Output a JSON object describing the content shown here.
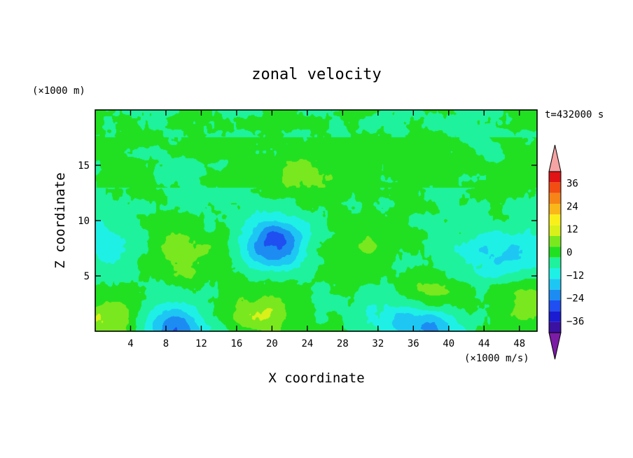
{
  "chart_data": {
    "type": "heatmap",
    "title": "zonal velocity",
    "xlabel": "X coordinate",
    "ylabel": "Z coordinate",
    "x_unit": "(×1000 m/s)",
    "y_unit": "(×1000 m)",
    "time_label": "t=432000 s",
    "xlim": [
      0,
      50
    ],
    "ylim": [
      0,
      20
    ],
    "x_ticks": [
      "4",
      "8",
      "12",
      "16",
      "20",
      "24",
      "28",
      "32",
      "36",
      "40",
      "44",
      "48"
    ],
    "y_ticks": [
      "5",
      "10",
      "15"
    ],
    "colorbar": {
      "tick_labels": [
        "36",
        "24",
        "12",
        "0",
        "−12",
        "−24",
        "−36"
      ],
      "levels": [
        -42,
        -36,
        -30,
        -24,
        -18,
        -12,
        -6,
        0,
        6,
        12,
        18,
        24,
        30,
        36,
        42
      ],
      "colors": [
        "#7c1ba6",
        "#3a11a1",
        "#1b1bd1",
        "#1f4ff0",
        "#1c8cf2",
        "#1ec7f3",
        "#1ff0e6",
        "#1ff29c",
        "#21e021",
        "#7ae81e",
        "#d9f01a",
        "#f9ef1a",
        "#f9b71a",
        "#f78417",
        "#f24d12",
        "#e01414",
        "#f5a3a3"
      ]
    },
    "features": [
      {
        "x": 10,
        "z": 6.8,
        "value": 10
      },
      {
        "x": 19,
        "z": 1.5,
        "value": 12
      },
      {
        "x": 30,
        "z": 8,
        "value": 6
      },
      {
        "x": 24,
        "z": 14,
        "value": 6
      },
      {
        "x": 38,
        "z": 3,
        "value": 9
      },
      {
        "x": 49,
        "z": 2.5,
        "value": 9
      },
      {
        "x": 1,
        "z": 1,
        "value": 12
      },
      {
        "x": 9,
        "z": 0.3,
        "value": -24
      },
      {
        "x": 20.5,
        "z": 8.3,
        "value": -18
      },
      {
        "x": 20,
        "z": 7.5,
        "value": -10
      },
      {
        "x": 38,
        "z": 0.3,
        "value": -18
      },
      {
        "x": 34,
        "z": 1,
        "value": -10
      },
      {
        "x": 1,
        "z": 8,
        "value": -10
      },
      {
        "x": 44,
        "z": 7,
        "value": -10
      },
      {
        "x": 49,
        "z": 7,
        "value": -10
      },
      {
        "x": 9,
        "z": 15,
        "value": -4
      },
      {
        "x": 44,
        "z": 18,
        "value": -3
      }
    ]
  }
}
